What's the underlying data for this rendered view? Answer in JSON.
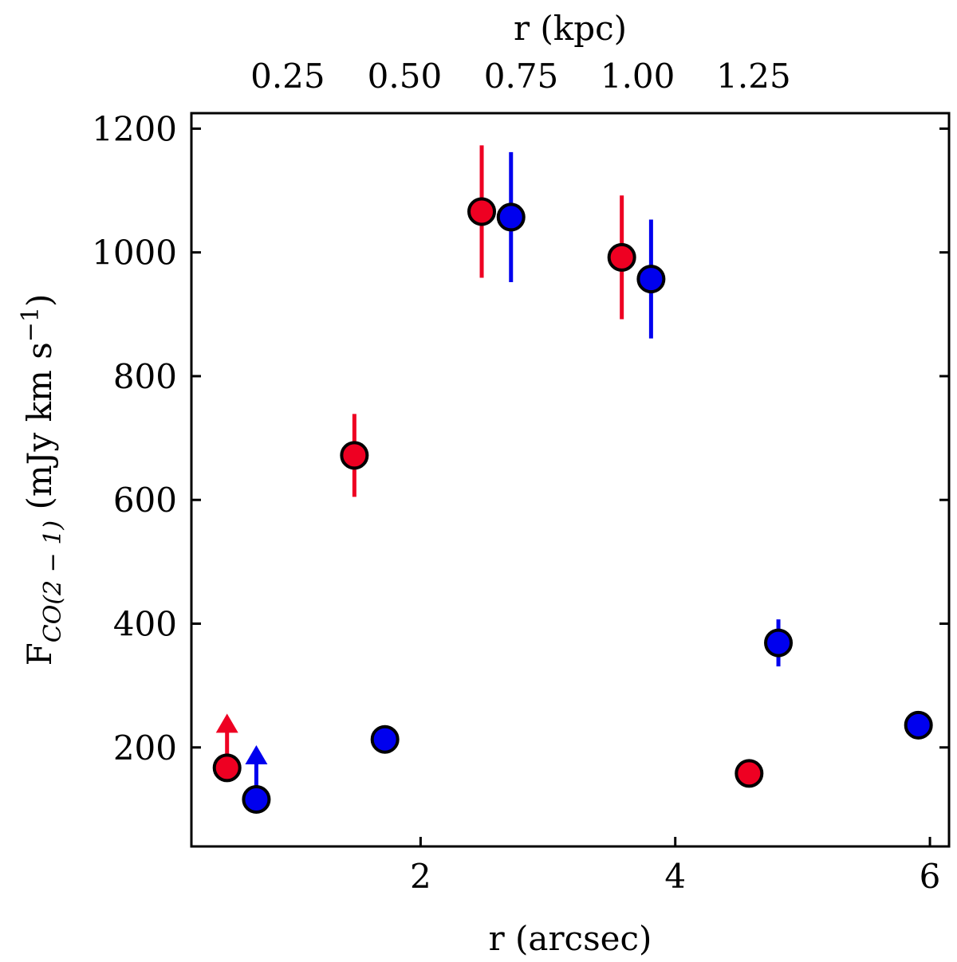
{
  "chart_data": {
    "type": "scatter",
    "xlabel": "r (arcsec)",
    "xlabel_top": "r (kpc)",
    "ylabel_main": "F",
    "ylabel_sub": "CO(2 − 1)",
    "ylabel_unit_pre": " (mJy km s",
    "ylabel_unit_sup": "−1",
    "ylabel_unit_post": ")",
    "xlim": [
      0.2,
      6.15
    ],
    "ylim": [
      40,
      1225
    ],
    "x_ticks": [
      2,
      4,
      6
    ],
    "x_tick_labels": [
      "2",
      "4",
      "6"
    ],
    "y_ticks": [
      200,
      400,
      600,
      800,
      1000,
      1200
    ],
    "y_tick_labels": [
      "200",
      "400",
      "600",
      "800",
      "1000",
      "1200"
    ],
    "top_ticks_x": [
      0.957,
      1.875,
      2.79,
      3.705,
      4.615
    ],
    "top_tick_labels": [
      "0.25",
      "0.50",
      "0.75",
      "1.00",
      "1.25"
    ],
    "series": [
      {
        "name": "red",
        "color": "#ee0022",
        "points": [
          {
            "x": 0.48,
            "y": 167,
            "lower_limit": true
          },
          {
            "x": 1.48,
            "y": 672,
            "err": 67
          },
          {
            "x": 2.48,
            "y": 1066,
            "err": 107
          },
          {
            "x": 3.58,
            "y": 992,
            "err": 100
          },
          {
            "x": 4.58,
            "y": 158
          }
        ]
      },
      {
        "name": "blue",
        "color": "#0000ee",
        "points": [
          {
            "x": 0.71,
            "y": 116,
            "lower_limit": true
          },
          {
            "x": 1.72,
            "y": 213
          },
          {
            "x": 2.71,
            "y": 1057,
            "err": 105
          },
          {
            "x": 3.81,
            "y": 957,
            "err": 96
          },
          {
            "x": 4.81,
            "y": 369,
            "err": 38
          },
          {
            "x": 5.91,
            "y": 236
          }
        ]
      }
    ]
  }
}
